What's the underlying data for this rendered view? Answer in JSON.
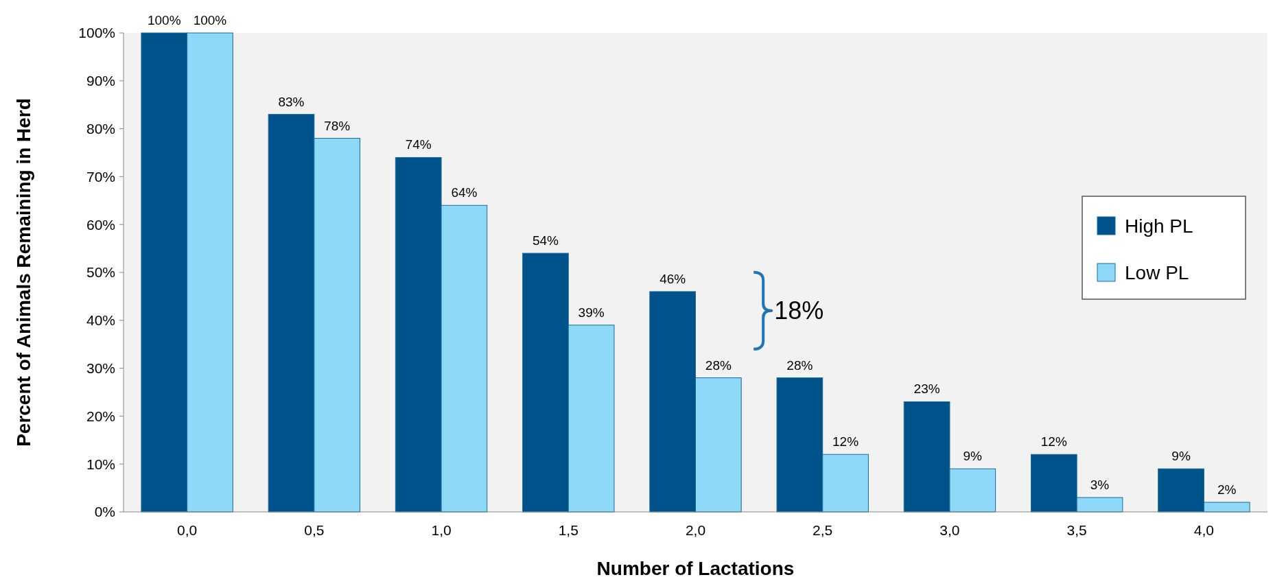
{
  "chart_data": {
    "type": "bar",
    "xlabel": "Number of Lactations",
    "ylabel": "Percent of Animals Remaining in Herd",
    "categories": [
      "0,0",
      "0,5",
      "1,0",
      "1,5",
      "2,0",
      "2,5",
      "3,0",
      "3,5",
      "4,0"
    ],
    "series": [
      {
        "name": "High PL",
        "color": "#00538a",
        "values": [
          100,
          83,
          74,
          54,
          46,
          28,
          23,
          12,
          9
        ],
        "value_labels": [
          "100%",
          "83%",
          "74%",
          "54%",
          "46%",
          "28%",
          "23%",
          "12%",
          "9%"
        ]
      },
      {
        "name": "Low PL",
        "color": "#8ed8f8",
        "values": [
          100,
          78,
          64,
          39,
          28,
          12,
          9,
          3,
          2
        ],
        "value_labels": [
          "100%",
          "78%",
          "64%",
          "39%",
          "28%",
          "12%",
          "9%",
          "3%",
          "2%"
        ]
      }
    ],
    "ylim": [
      0,
      100
    ],
    "yticks": [
      {
        "value": 0,
        "label": "0%"
      },
      {
        "value": 10,
        "label": "10%"
      },
      {
        "value": 20,
        "label": "20%"
      },
      {
        "value": 30,
        "label": "30%"
      },
      {
        "value": 40,
        "label": "40%"
      },
      {
        "value": 50,
        "label": "50%"
      },
      {
        "value": 60,
        "label": "60%"
      },
      {
        "value": 70,
        "label": "70%"
      },
      {
        "value": 80,
        "label": "80%"
      },
      {
        "value": 90,
        "label": "90%"
      },
      {
        "value": 100,
        "label": "100%"
      }
    ],
    "legend": "right",
    "annotations": [
      "18%"
    ]
  }
}
